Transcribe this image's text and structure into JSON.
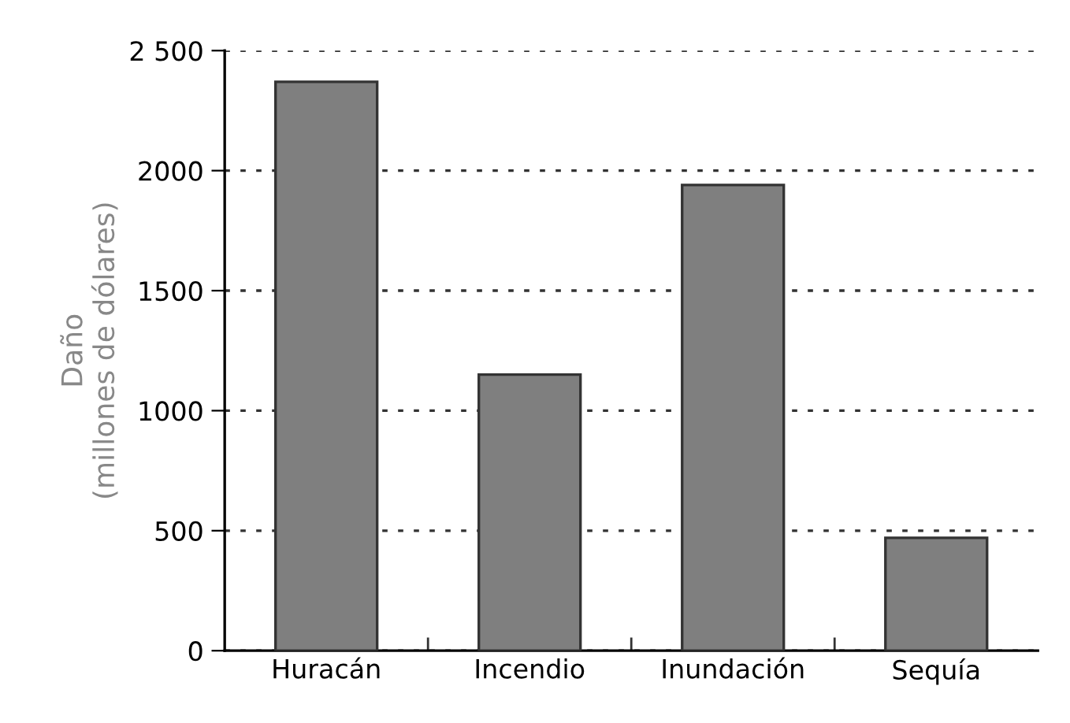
{
  "chart_data": {
    "type": "bar",
    "ylabel": "Daño\n(millones de dólares)",
    "categories": [
      "Huracán",
      "Incendio",
      "Inundación",
      "Sequía"
    ],
    "values": [
      2370,
      1150,
      1940,
      470
    ],
    "color": "#7f7f7f",
    "ylim": [
      0,
      2500
    ],
    "yticks": [
      0,
      500,
      1000,
      1500,
      2000,
      {
        "value": 2500,
        "label": "2 500"
      }
    ],
    "grid": "y"
  }
}
